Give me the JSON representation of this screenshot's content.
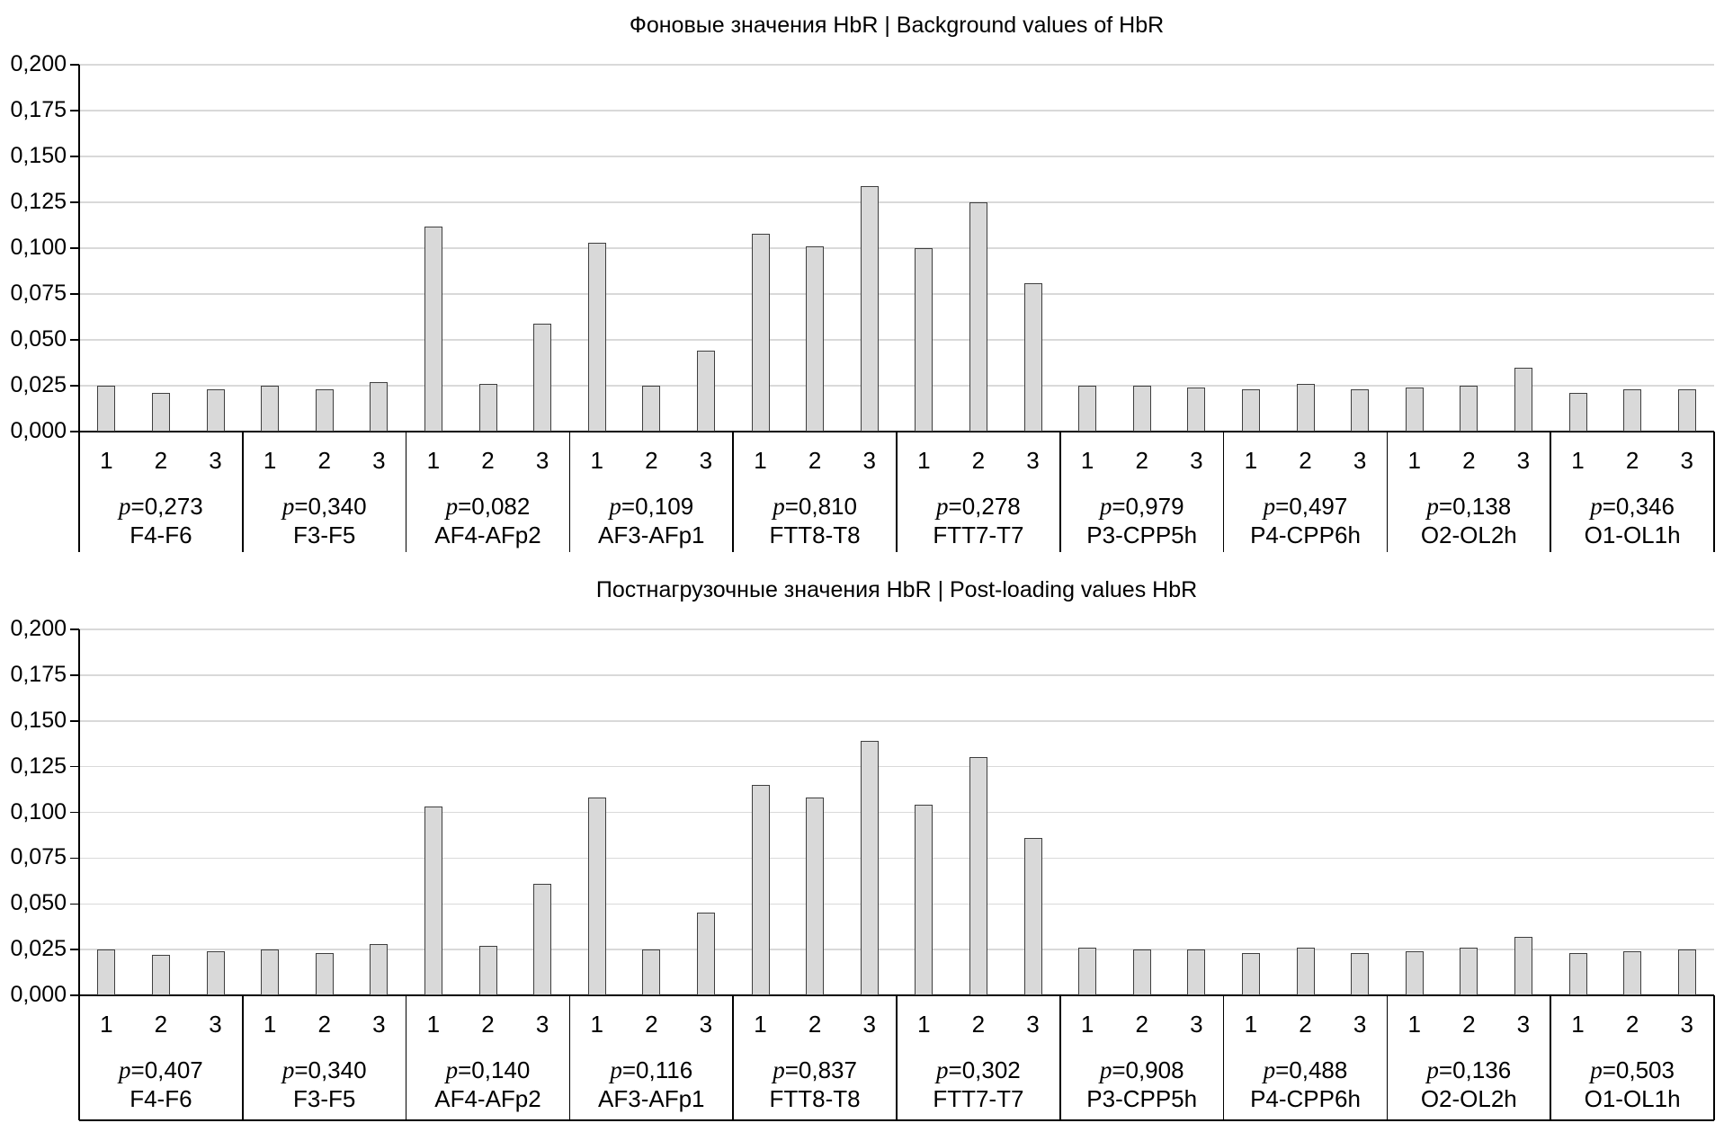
{
  "figure": {
    "description": "Two stacked grouped bar charts of HbR values with p-values per channel pair"
  },
  "style": {
    "background": "#ffffff",
    "bar_fill": "#d9d9d9",
    "bar_border": "#3f3f3f",
    "grid_line": "#d9d9d9",
    "axis_line": "#000000",
    "text": "#000000"
  },
  "chart_data": [
    {
      "type": "bar",
      "title": "Фоновые значения HbR | Background values of HbR",
      "ylim": [
        0,
        0.2
      ],
      "ytick_step": 0.025,
      "yticklabels": [
        "0,200",
        "0,175",
        "0,150",
        "0,125",
        "0,100",
        "0,075",
        "0,050",
        "0,025",
        "0,000"
      ],
      "grid": true,
      "legend": false,
      "bar_labels": [
        "1",
        "2",
        "3"
      ],
      "p_format": {
        "symbol": "p",
        "separator": "="
      },
      "groups": [
        {
          "name": "F4-F6",
          "p": "0,273",
          "values": [
            0.025,
            0.021,
            0.023
          ]
        },
        {
          "name": "F3-F5",
          "p": "0,340",
          "values": [
            0.025,
            0.023,
            0.027
          ]
        },
        {
          "name": "AF4-AFp2",
          "p": "0,082",
          "values": [
            0.112,
            0.026,
            0.059
          ]
        },
        {
          "name": "AF3-AFp1",
          "p": "0,109",
          "values": [
            0.103,
            0.025,
            0.044
          ]
        },
        {
          "name": "FTT8-T8",
          "p": "0,810",
          "values": [
            0.108,
            0.101,
            0.134
          ]
        },
        {
          "name": "FTT7-T7",
          "p": "0,278",
          "values": [
            0.1,
            0.125,
            0.081
          ]
        },
        {
          "name": "P3-CPP5h",
          "p": "0,979",
          "values": [
            0.025,
            0.025,
            0.024
          ]
        },
        {
          "name": "P4-CPP6h",
          "p": "0,497",
          "values": [
            0.023,
            0.026,
            0.023
          ]
        },
        {
          "name": "O2-OL2h",
          "p": "0,138",
          "values": [
            0.024,
            0.025,
            0.035
          ]
        },
        {
          "name": "O1-OL1h",
          "p": "0,346",
          "values": [
            0.021,
            0.023,
            0.023
          ]
        }
      ]
    },
    {
      "type": "bar",
      "title": "Постнагрузочные значения HbR | Post-loading values HbR",
      "ylim": [
        0,
        0.2
      ],
      "ytick_step": 0.025,
      "yticklabels": [
        "0,200",
        "0,175",
        "0,150",
        "0,125",
        "0,100",
        "0,075",
        "0,050",
        "0,025",
        "0,000"
      ],
      "grid": true,
      "legend": false,
      "bar_labels": [
        "1",
        "2",
        "3"
      ],
      "p_format": {
        "symbol": "p",
        "separator": "="
      },
      "groups": [
        {
          "name": "F4-F6",
          "p": "0,407",
          "values": [
            0.025,
            0.022,
            0.024
          ]
        },
        {
          "name": "F3-F5",
          "p": "0,340",
          "values": [
            0.025,
            0.023,
            0.028
          ]
        },
        {
          "name": "AF4-AFp2",
          "p": "0,140",
          "values": [
            0.103,
            0.027,
            0.061
          ]
        },
        {
          "name": "AF3-AFp1",
          "p": "0,116",
          "values": [
            0.108,
            0.025,
            0.045
          ]
        },
        {
          "name": "FTT8-T8",
          "p": "0,837",
          "values": [
            0.115,
            0.108,
            0.139
          ]
        },
        {
          "name": "FTT7-T7",
          "p": "0,302",
          "values": [
            0.104,
            0.13,
            0.086
          ]
        },
        {
          "name": "P3-CPP5h",
          "p": "0,908",
          "values": [
            0.026,
            0.025,
            0.025
          ]
        },
        {
          "name": "P4-CPP6h",
          "p": "0,488",
          "values": [
            0.023,
            0.026,
            0.023
          ]
        },
        {
          "name": "O2-OL2h",
          "p": "0,136",
          "values": [
            0.024,
            0.026,
            0.032
          ]
        },
        {
          "name": "O1-OL1h",
          "p": "0,503",
          "values": [
            0.023,
            0.024,
            0.025
          ]
        }
      ]
    }
  ]
}
